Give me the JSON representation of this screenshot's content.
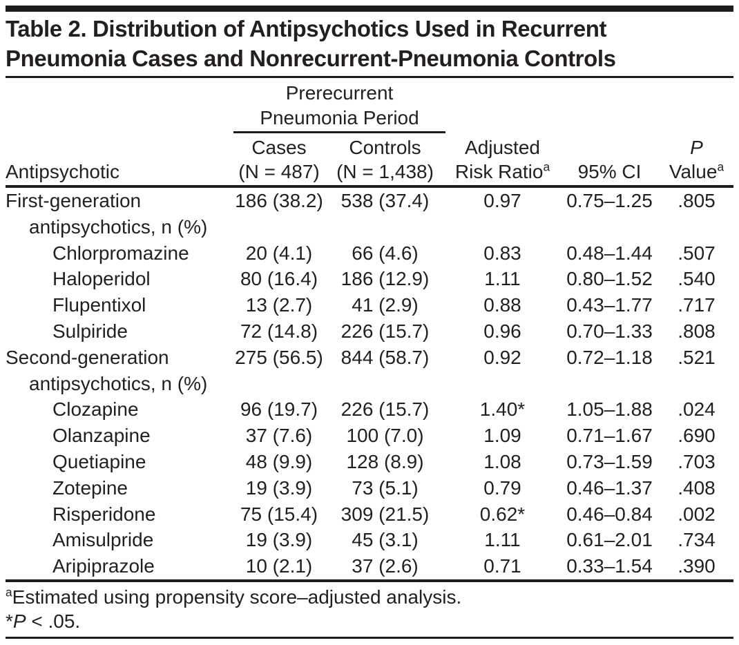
{
  "title": {
    "line1": "Table 2. Distribution of Antipsychotics Used in Recurrent",
    "line2": "Pneumonia Cases and Nonrecurrent-Pneumonia Controls"
  },
  "header": {
    "spanner_line1": "Prerecurrent",
    "spanner_line2": "Pneumonia Period",
    "antipsychotic": "Antipsychotic",
    "cases_line1": "Cases",
    "cases_line2": "(N = 487)",
    "controls_line1": "Controls",
    "controls_line2": "(N = 1,438)",
    "arr_line1": "Adjusted",
    "arr_line2": "Risk Ratio",
    "ci": "95% CI",
    "p_line1": "P",
    "p_line2": "Value",
    "sup_a": "a"
  },
  "rows": [
    {
      "name": "First-generation",
      "name2": "antipsychotics, n (%)",
      "cases": "186 (38.2)",
      "controls": "538 (37.4)",
      "arr": "0.97",
      "ci": "0.75–1.25",
      "p": ".805"
    },
    {
      "name": "Chlorpromazine",
      "cases": "20 (4.1)",
      "controls": "66 (4.6)",
      "arr": "0.83",
      "ci": "0.48–1.44",
      "p": ".507"
    },
    {
      "name": "Haloperidol",
      "cases": "80 (16.4)",
      "controls": "186 (12.9)",
      "arr": "1.11",
      "ci": "0.80–1.52",
      "p": ".540"
    },
    {
      "name": "Flupentixol",
      "cases": "13 (2.7)",
      "controls": "41 (2.9)",
      "arr": "0.88",
      "ci": "0.43–1.77",
      "p": ".717"
    },
    {
      "name": "Sulpiride",
      "cases": "72 (14.8)",
      "controls": "226 (15.7)",
      "arr": "0.96",
      "ci": "0.70–1.33",
      "p": ".808"
    },
    {
      "name": "Second-generation",
      "name2": "antipsychotics, n (%)",
      "cases": "275 (56.5)",
      "controls": "844 (58.7)",
      "arr": "0.92",
      "ci": "0.72–1.18",
      "p": ".521"
    },
    {
      "name": "Clozapine",
      "cases": "96 (19.7)",
      "controls": "226 (15.7)",
      "arr": "1.40*",
      "ci": "1.05–1.88",
      "p": ".024"
    },
    {
      "name": "Olanzapine",
      "cases": "37 (7.6)",
      "controls": "100 (7.0)",
      "arr": "1.09",
      "ci": "0.71–1.67",
      "p": ".690"
    },
    {
      "name": "Quetiapine",
      "cases": "48 (9.9)",
      "controls": "128 (8.9)",
      "arr": "1.08",
      "ci": "0.73–1.59",
      "p": ".703"
    },
    {
      "name": "Zotepine",
      "cases": "19 (3.9)",
      "controls": "73 (5.1)",
      "arr": "0.79",
      "ci": "0.46–1.37",
      "p": ".408"
    },
    {
      "name": "Risperidone",
      "cases": "75 (15.4)",
      "controls": "309 (21.5)",
      "arr": "0.62*",
      "ci": "0.46–0.84",
      "p": ".002"
    },
    {
      "name": "Amisulpride",
      "cases": "19 (3.9)",
      "controls": "45 (3.1)",
      "arr": "1.11",
      "ci": "0.61–2.01",
      "p": ".734"
    },
    {
      "name": "Aripiprazole",
      "cases": "10 (2.1)",
      "controls": "37 (2.6)",
      "arr": "0.71",
      "ci": "0.33–1.54",
      "p": ".390"
    }
  ],
  "footnotes": {
    "marker_a": "a",
    "a_text": "Estimated using propensity score–adjusted analysis.",
    "star": "*",
    "star_p": "P",
    "star_rest": " < .05."
  },
  "colors": {
    "text": "#231f20",
    "rule": "#1d1d1b",
    "background": "#ffffff"
  }
}
